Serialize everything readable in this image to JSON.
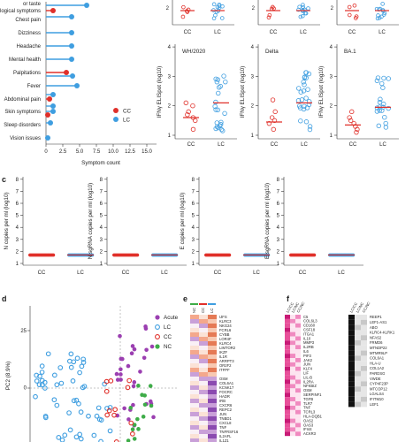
{
  "colors": {
    "cc": "#e0302a",
    "lc": "#3f9ee0",
    "acute": "#9b3fb1",
    "nc": "#3eac48",
    "median": "#e0302a",
    "heat_pink": "#e0308a",
    "heat_black": "#111111"
  },
  "panel_top_left": {
    "categories": [
      "or taste",
      "Neurological symptoms",
      "Chest pain",
      "Dizziness",
      "Headache",
      "Mental health",
      "Palpitations",
      "Fever",
      "Abdominal pain",
      "Skin symptoms",
      "Sleep disorders",
      "Vision issues"
    ],
    "legend": [
      "CC",
      "LC"
    ],
    "xlabel": "Symptom count",
    "xticks": [
      "0",
      "2.5",
      "5.0",
      "7.5",
      "10.0",
      "12.5",
      "15.0"
    ]
  },
  "panels_top_row": {
    "groups": [
      "CC",
      "LC"
    ]
  },
  "panels_b": {
    "ylabel": "IFNγ ELISpot (log10)",
    "yticks": [
      "1",
      "2",
      "3",
      "4"
    ],
    "groups": [
      "CC",
      "LC"
    ],
    "titles": [
      "WH/2020",
      "Delta",
      "BA.1"
    ]
  },
  "panel_c": {
    "letter": "c",
    "ylabels": [
      "N copies per ml (log10)",
      "N sgRNA copies per ml (log10)",
      "E copies per ml (log10)",
      "E sgRNA copies per ml (log10)"
    ],
    "yticks": [
      "1",
      "2",
      "3",
      "4",
      "5",
      "6",
      "7",
      "8"
    ],
    "groups": [
      "CC",
      "LC"
    ]
  },
  "panel_d": {
    "letter": "d",
    "ylabel": "PC2 (8.9%)",
    "legend": [
      "Acute",
      "LC",
      "CC",
      "NC"
    ],
    "yticks": [
      "0",
      "25"
    ]
  },
  "panel_e": {
    "letter": "e",
    "columns": [
      "NC",
      "CC",
      "LC"
    ],
    "genes": [
      "IJFS",
      "KLRC3",
      "NKG24",
      "FCRL6",
      "CYBB",
      "LOR4F",
      "KLRC4",
      "LIMTOR2",
      "IKZF",
      "IL1R",
      "ARRPT3",
      "OR2F2",
      "ITFPF",
      "",
      "OSM",
      "COL6A1",
      "KCNK17",
      "FOCRC",
      "HADR",
      "IRB",
      "CXCR6",
      "REPC2",
      "JUN",
      "TNBD1",
      "CXCL8",
      "TNF",
      "TNFRSF16",
      "IL2AFL",
      "IL1Z1"
    ]
  },
  "panel_f": {
    "letter": "f",
    "columns_left": [
      "LC/CC",
      "LC/NC",
      "CC/NC"
    ],
    "genes_left": [
      "C5",
      "COL6L3",
      "CD160",
      "CSF18",
      "ITGA1",
      "IL10",
      "MMP3",
      "IL2RB",
      "IL6",
      "PIF3",
      "JAK2",
      "JUN",
      "KLF4",
      "LIF",
      "LIL-B",
      "IL2RA",
      "NFKBIZ",
      "OSM",
      "SERPINF1",
      "TGFB",
      "TLR7",
      "TNF",
      "TCRL3",
      "HLA-DQB1",
      "OAS2",
      "OAS3",
      "IFI44",
      "ACKR3"
    ],
    "columns_right": [
      "LC/CC",
      "LC/NC",
      "CC/NC"
    ],
    "genes_right": [
      "REEP1",
      "LEF1-AS1",
      "ABO",
      "KLRC4-KLRK1",
      "NFAS2",
      "FRMD6",
      "MTNDP22",
      "MTMR9LP",
      "COL6A1",
      "HLA-U",
      "COL1A2",
      "PARDSG",
      "VWDE",
      "CYP4F23P",
      "MTCOP12",
      "LGALS4",
      "IFITM10",
      "LEF1"
    ]
  }
}
